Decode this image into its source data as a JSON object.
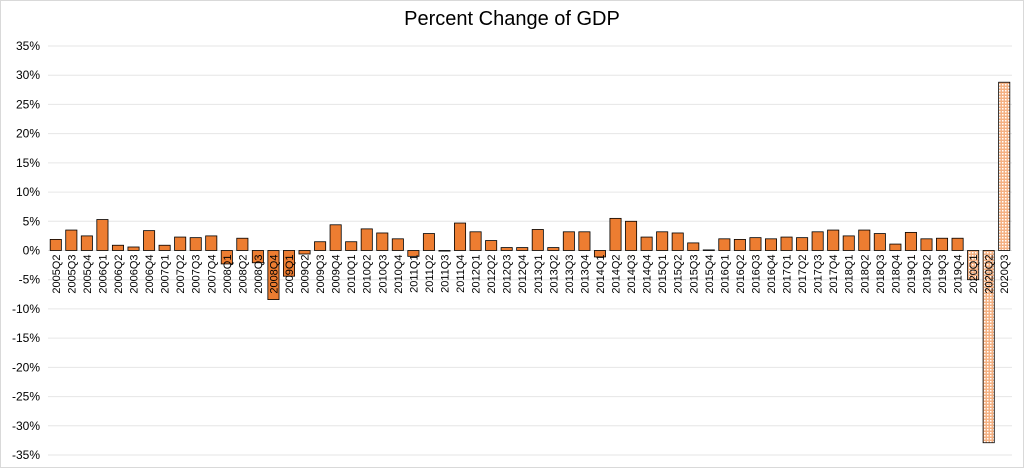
{
  "chart_data": {
    "type": "bar",
    "title": "Percent Change of GDP",
    "xlabel": "",
    "ylabel": "",
    "ylim": [
      -35,
      35
    ],
    "ytick_step": 5,
    "ytick_suffix": "%",
    "grid": true,
    "legend": "none",
    "categories": [
      "2005Q2",
      "2005Q3",
      "2005Q4",
      "2006Q1",
      "2006Q2",
      "2006Q3",
      "2006Q4",
      "2007Q1",
      "2007Q2",
      "2007Q3",
      "2007Q4",
      "2008Q1",
      "2008Q2",
      "2008Q3",
      "2008Q4",
      "2009Q1",
      "2009Q2",
      "2009Q3",
      "2009Q4",
      "2010Q1",
      "2010Q2",
      "2010Q3",
      "2010Q4",
      "2011Q1",
      "2011Q2",
      "2011Q3",
      "2011Q4",
      "2012Q1",
      "2012Q2",
      "2012Q3",
      "2012Q4",
      "2013Q1",
      "2013Q2",
      "2013Q3",
      "2013Q4",
      "2014Q1",
      "2014Q2",
      "2014Q3",
      "2014Q4",
      "2015Q1",
      "2015Q2",
      "2015Q3",
      "2015Q4",
      "2016Q1",
      "2016Q2",
      "2016Q3",
      "2016Q4",
      "2017Q1",
      "2017Q2",
      "2017Q3",
      "2017Q4",
      "2018Q1",
      "2018Q2",
      "2018Q3",
      "2018Q4",
      "2019Q1",
      "2019Q2",
      "2019Q3",
      "2019Q4",
      "2020Q1",
      "2020Q2",
      "2020Q3"
    ],
    "values": [
      1.9,
      3.5,
      2.5,
      5.3,
      0.9,
      0.6,
      3.4,
      0.9,
      2.3,
      2.2,
      2.5,
      -2.3,
      2.1,
      -2.1,
      -8.4,
      -4.4,
      -0.6,
      1.5,
      4.4,
      1.5,
      3.7,
      3.0,
      2.0,
      -1.0,
      2.9,
      -0.1,
      4.7,
      3.2,
      1.7,
      0.5,
      0.5,
      3.6,
      0.5,
      3.2,
      3.2,
      -1.1,
      5.5,
      5.0,
      2.3,
      3.2,
      3.0,
      1.3,
      0.1,
      2.0,
      1.9,
      2.2,
      2.0,
      2.3,
      2.2,
      3.2,
      3.5,
      2.5,
      3.5,
      2.9,
      1.1,
      3.1,
      2.0,
      2.1,
      2.1,
      -5.0,
      -32.9,
      28.8
    ],
    "colors": {
      "bar_fill": "#ed7d31",
      "bar_stroke": "#000000",
      "pattern_fill": "#f4b183",
      "grid": "#e6e6e6"
    }
  }
}
